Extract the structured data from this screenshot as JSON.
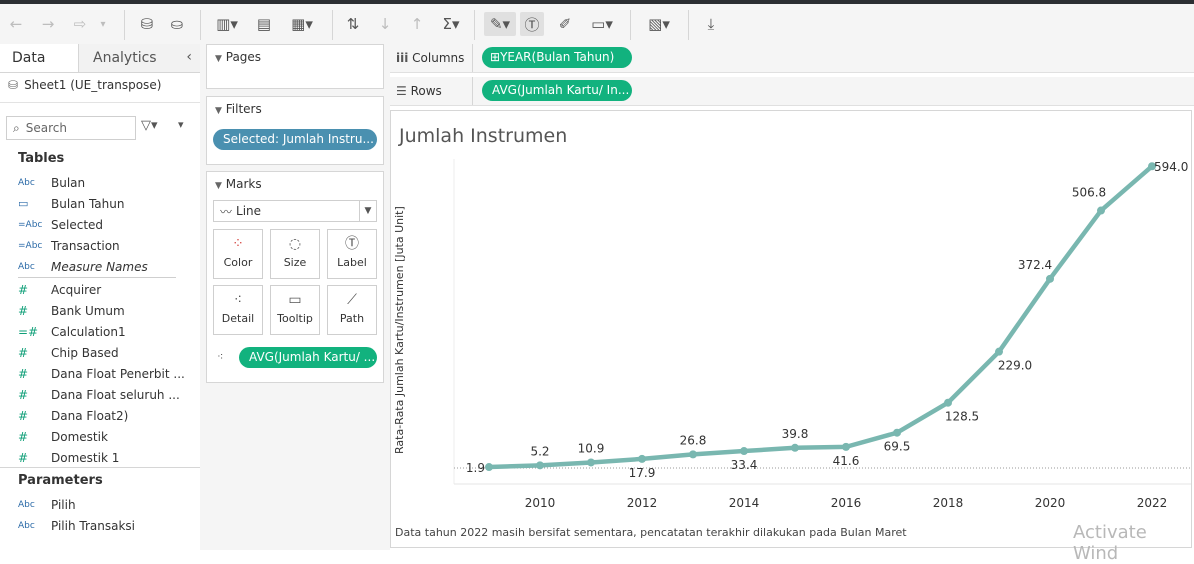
{
  "data_pane": {
    "tab_data": "Data",
    "tab_analytics": "Analytics",
    "datasource": "Sheet1 (UE_transpose)",
    "search_placeholder": "Search",
    "tables_header": "Tables",
    "tables": [
      {
        "type": "Abc",
        "name": "Bulan"
      },
      {
        "type": "date",
        "name": "Bulan Tahun"
      },
      {
        "type": "=Abc",
        "name": "Selected"
      },
      {
        "type": "=Abc",
        "name": "Transaction"
      },
      {
        "type": "Abc",
        "name": "Measure Names"
      },
      {
        "type": "#",
        "name": "Acquirer"
      },
      {
        "type": "#",
        "name": "Bank Umum"
      },
      {
        "type": "=#",
        "name": "Calculation1"
      },
      {
        "type": "#",
        "name": "Chip Based"
      },
      {
        "type": "#",
        "name": "Dana Float Penerbit ..."
      },
      {
        "type": "#",
        "name": "Dana Float seluruh ..."
      },
      {
        "type": "#",
        "name": "Dana Float2)"
      },
      {
        "type": "#",
        "name": "Domestik"
      },
      {
        "type": "#",
        "name": "Domestik 1"
      }
    ],
    "parameters_header": "Parameters",
    "parameters": [
      {
        "type": "Abc",
        "name": "Pilih"
      },
      {
        "type": "Abc",
        "name": "Pilih Transaksi"
      }
    ]
  },
  "cards": {
    "pages_title": "Pages",
    "filters_title": "Filters",
    "filter_pill": "Selected: Jumlah Instru...",
    "marks_title": "Marks",
    "mark_type": "Line",
    "mark_buttons": [
      "Color",
      "Size",
      "Label",
      "Detail",
      "Tooltip",
      "Path"
    ],
    "marks_pill": "AVG(Jumlah Kartu/ ..."
  },
  "shelves": {
    "columns_label": "Columns",
    "columns_pill": "YEAR(Bulan Tahun)",
    "rows_label": "Rows",
    "rows_pill": "AVG(Jumlah Kartu/ In..."
  },
  "view": {
    "footnote": "Data tahun 2022 masih bersifat sementara, pencatatan terakhir dilakukan pada Bulan Maret"
  },
  "watermark": "Activate Wind",
  "chart_data": {
    "type": "line",
    "title": "Jumlah Instrumen",
    "xlabel": "",
    "ylabel": "Rata-Rata Jumlah Kartu/Instrumen [Juta Unit]",
    "x": [
      2009,
      2010,
      2011,
      2012,
      2013,
      2014,
      2015,
      2016,
      2017,
      2018,
      2019,
      2020,
      2021,
      2022
    ],
    "values": [
      1.9,
      5.2,
      10.9,
      17.9,
      26.8,
      33.4,
      39.8,
      41.6,
      69.5,
      128.5,
      229.0,
      372.4,
      506.8,
      594.0
    ],
    "labels": [
      "1.9",
      "5.2",
      "10.9",
      "17.9",
      "26.8",
      "33.4",
      "39.8",
      "41.6",
      "69.5",
      "128.5",
      "229.0",
      "372.4",
      "506.8",
      "594.0"
    ],
    "x_ticks": [
      2010,
      2012,
      2014,
      2016,
      2018,
      2020,
      2022
    ],
    "ylim": [
      0,
      600
    ],
    "line_color": "#79b7b0"
  }
}
